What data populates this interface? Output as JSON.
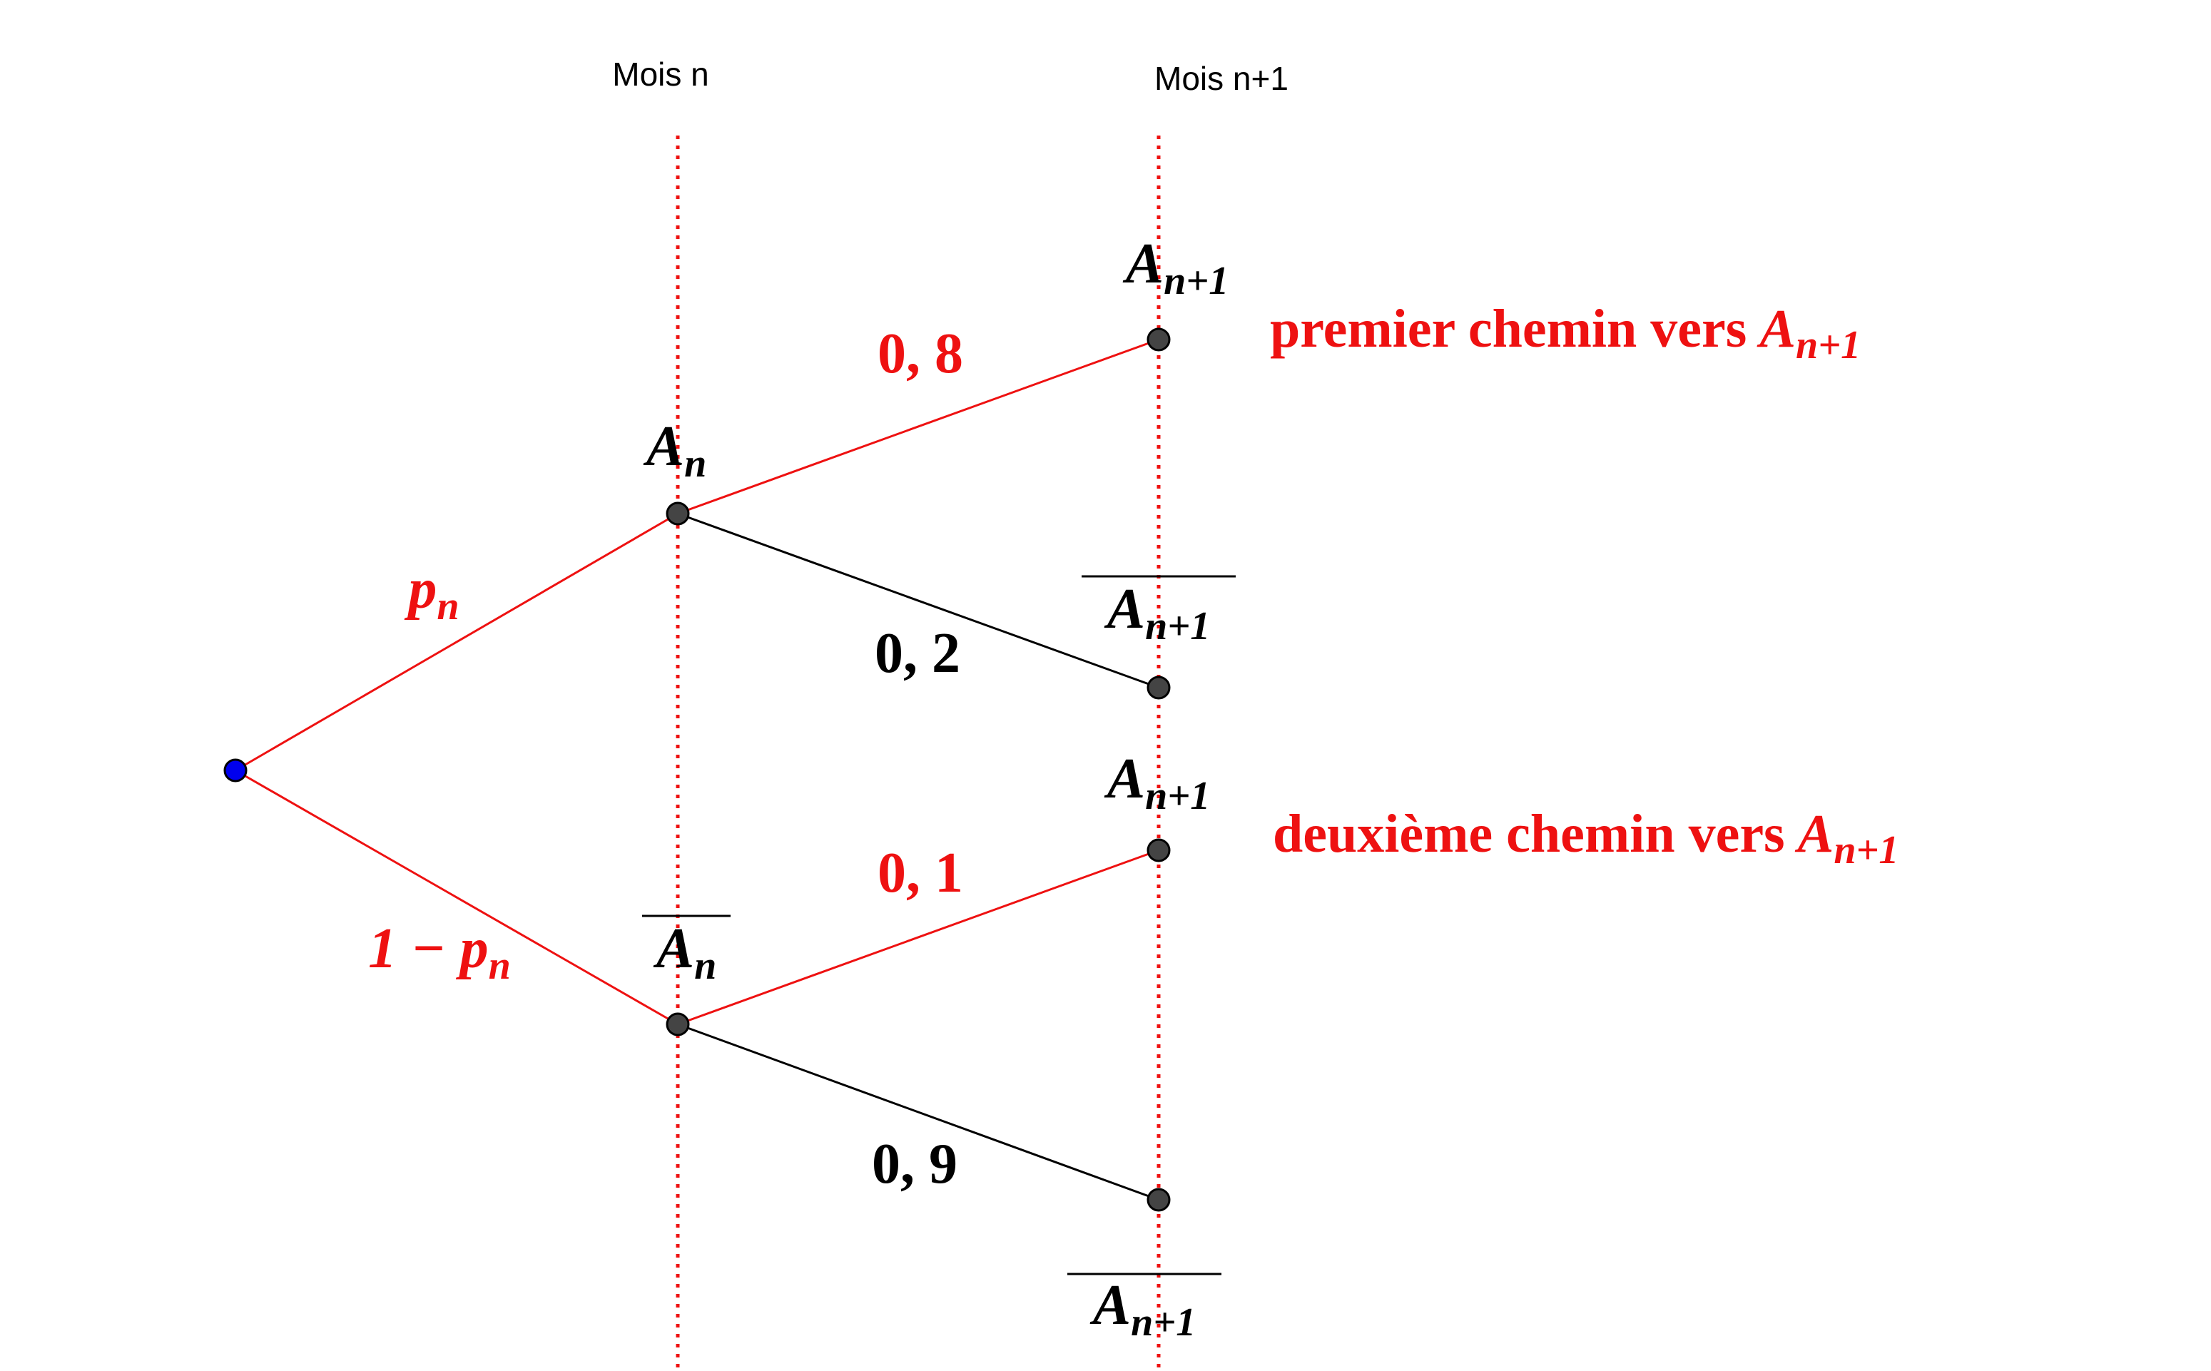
{
  "headers": [
    "Mois n",
    "Mois n+1"
  ],
  "nodes": [
    {
      "base": "A",
      "sub": "n"
    },
    {
      "base": "A",
      "sub": "n"
    },
    {
      "base": "A",
      "sub": "n+1"
    },
    {
      "base": "A",
      "sub": "n+1"
    },
    {
      "base": "A",
      "sub": "n+1"
    },
    {
      "base": "A",
      "sub": "n+1"
    }
  ],
  "edges": [
    {
      "base": "p",
      "sub": "n"
    },
    {
      "base": "1 − p",
      "sub": "n"
    },
    {
      "text": "0, 8"
    },
    {
      "text": "0, 2"
    },
    {
      "text": "0, 1"
    },
    {
      "text": "0, 9"
    }
  ],
  "annotations": [
    {
      "text": "premier chemin vers",
      "base": "A",
      "sub": "n+1"
    },
    {
      "text": "deuxième chemin vers",
      "base": "A",
      "sub": "n+1"
    }
  ]
}
